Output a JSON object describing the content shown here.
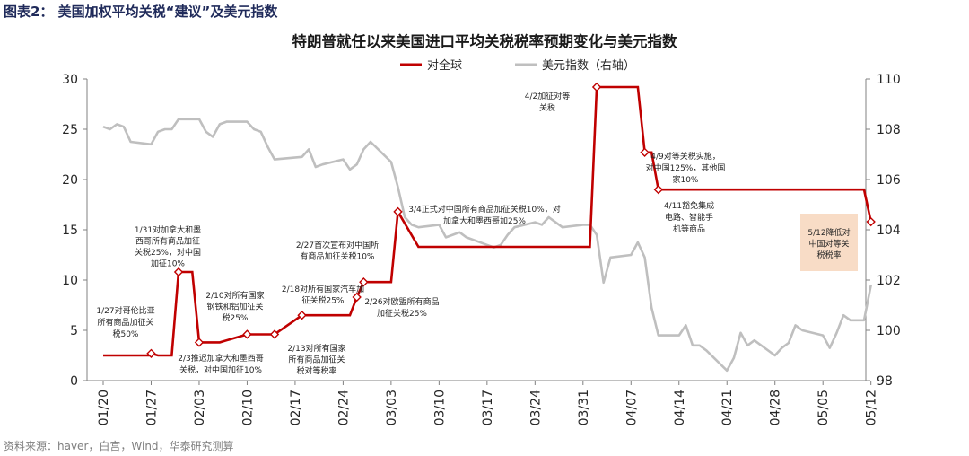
{
  "figure_label": "图表2：  美国加权平均关税“建议”及美元指数",
  "source": "资料来源：haver，白宫，Wind，华泰研究测算",
  "colors": {
    "tariff": "#c00000",
    "dxy": "#bfbfbf",
    "title": "#1a1a1a",
    "axis": "#595959",
    "box": "#f8dcc6",
    "header_rule": "#8a3b38"
  },
  "chart_data": {
    "type": "line",
    "title": "特朗普就任以来美国进口平均关税税率预期变化与美元指数",
    "legend": [
      "对全球",
      "美元指数（右轴）"
    ],
    "legend_position": "top-center",
    "grid": false,
    "x_tick_labels": [
      "01/20",
      "01/27",
      "02/03",
      "02/10",
      "02/17",
      "02/24",
      "03/03",
      "03/10",
      "03/17",
      "03/24",
      "03/31",
      "04/07",
      "04/14",
      "04/21",
      "04/28",
      "05/05",
      "05/12"
    ],
    "y_left": {
      "min": 0,
      "max": 30,
      "ticks": [
        "0",
        "5",
        "10",
        "15",
        "20",
        "25",
        "30"
      ]
    },
    "y_right": {
      "min": 98,
      "max": 110,
      "ticks": [
        "98",
        "100",
        "102",
        "104",
        "106",
        "108",
        "110"
      ]
    },
    "series": [
      {
        "name": "对全球",
        "axis": "left",
        "points": [
          [
            "01/20",
            2.5
          ],
          [
            "01/27",
            2.5
          ],
          [
            "01/27",
            2.7
          ],
          [
            "01/28",
            2.5
          ],
          [
            "01/30",
            2.5
          ],
          [
            "01/31",
            10.8
          ],
          [
            "02/02",
            10.8
          ],
          [
            "02/03",
            3.8
          ],
          [
            "02/06",
            3.8
          ],
          [
            "02/10",
            4.6
          ],
          [
            "02/14",
            4.6
          ],
          [
            "02/18",
            6.5
          ],
          [
            "02/25",
            6.5
          ],
          [
            "02/26",
            8.3
          ],
          [
            "02/27",
            9.8
          ],
          [
            "03/03",
            9.8
          ],
          [
            "03/04",
            16.8
          ],
          [
            "03/07",
            13.3
          ],
          [
            "04/01",
            13.3
          ],
          [
            "04/02",
            29.2
          ],
          [
            "04/08",
            29.2
          ],
          [
            "04/09",
            22.7
          ],
          [
            "04/10",
            22.7
          ],
          [
            "04/11",
            19.0
          ],
          [
            "05/11",
            19.0
          ],
          [
            "05/12",
            15.8
          ]
        ]
      },
      {
        "name": "美元指数（右轴）",
        "axis": "right",
        "points": [
          [
            "01/20",
            108.1
          ],
          [
            "01/21",
            108.0
          ],
          [
            "01/22",
            108.2
          ],
          [
            "01/23",
            108.1
          ],
          [
            "01/24",
            107.5
          ],
          [
            "01/27",
            107.4
          ],
          [
            "01/28",
            107.9
          ],
          [
            "01/29",
            108.0
          ],
          [
            "01/30",
            108.0
          ],
          [
            "01/31",
            108.4
          ],
          [
            "02/03",
            108.4
          ],
          [
            "02/04",
            107.9
          ],
          [
            "02/05",
            107.7
          ],
          [
            "02/06",
            108.2
          ],
          [
            "02/07",
            108.3
          ],
          [
            "02/10",
            108.3
          ],
          [
            "02/11",
            108.0
          ],
          [
            "02/12",
            107.9
          ],
          [
            "02/13",
            107.3
          ],
          [
            "02/14",
            106.8
          ],
          [
            "02/18",
            106.9
          ],
          [
            "02/19",
            107.2
          ],
          [
            "02/20",
            106.5
          ],
          [
            "02/21",
            106.6
          ],
          [
            "02/24",
            106.8
          ],
          [
            "02/25",
            106.4
          ],
          [
            "02/26",
            106.6
          ],
          [
            "02/27",
            107.2
          ],
          [
            "02/28",
            107.5
          ],
          [
            "03/03",
            106.7
          ],
          [
            "03/04",
            105.7
          ],
          [
            "03/05",
            104.5
          ],
          [
            "03/06",
            104.2
          ],
          [
            "03/07",
            104.1
          ],
          [
            "03/10",
            104.2
          ],
          [
            "03/11",
            103.7
          ],
          [
            "03/12",
            103.8
          ],
          [
            "03/13",
            103.9
          ],
          [
            "03/14",
            103.7
          ],
          [
            "03/17",
            103.4
          ],
          [
            "03/18",
            103.3
          ],
          [
            "03/19",
            103.4
          ],
          [
            "03/20",
            103.8
          ],
          [
            "03/21",
            104.1
          ],
          [
            "03/24",
            104.3
          ],
          [
            "03/25",
            104.2
          ],
          [
            "03/26",
            104.5
          ],
          [
            "03/27",
            104.3
          ],
          [
            "03/28",
            104.1
          ],
          [
            "03/31",
            104.2
          ],
          [
            "04/01",
            104.2
          ],
          [
            "04/02",
            103.8
          ],
          [
            "04/03",
            101.9
          ],
          [
            "04/04",
            102.9
          ],
          [
            "04/07",
            103.0
          ],
          [
            "04/08",
            103.5
          ],
          [
            "04/09",
            102.9
          ],
          [
            "04/10",
            100.9
          ],
          [
            "04/11",
            99.8
          ],
          [
            "04/14",
            99.8
          ],
          [
            "04/15",
            100.2
          ],
          [
            "04/16",
            99.4
          ],
          [
            "04/17",
            99.4
          ],
          [
            "04/18",
            99.2
          ],
          [
            "04/21",
            98.4
          ],
          [
            "04/22",
            98.9
          ],
          [
            "04/23",
            99.9
          ],
          [
            "04/24",
            99.4
          ],
          [
            "04/25",
            99.6
          ],
          [
            "04/28",
            99.0
          ],
          [
            "04/29",
            99.3
          ],
          [
            "04/30",
            99.5
          ],
          [
            "05/01",
            100.2
          ],
          [
            "05/02",
            100.0
          ],
          [
            "05/05",
            99.8
          ],
          [
            "05/06",
            99.3
          ],
          [
            "05/07",
            99.9
          ],
          [
            "05/08",
            100.6
          ],
          [
            "05/09",
            100.4
          ],
          [
            "05/11",
            100.4
          ],
          [
            "05/12",
            101.8
          ]
        ]
      }
    ],
    "markers": [
      {
        "date": "01/27",
        "value": 2.7
      },
      {
        "date": "01/31",
        "value": 10.8
      },
      {
        "date": "02/03",
        "value": 3.8
      },
      {
        "date": "02/10",
        "value": 4.6
      },
      {
        "date": "02/14",
        "value": 4.6
      },
      {
        "date": "02/18",
        "value": 6.5
      },
      {
        "date": "02/26",
        "value": 8.3
      },
      {
        "date": "02/27",
        "value": 9.8
      },
      {
        "date": "03/04",
        "value": 16.8
      },
      {
        "date": "04/02",
        "value": 29.2
      },
      {
        "date": "04/09",
        "value": 22.7
      },
      {
        "date": "04/11",
        "value": 19.0
      },
      {
        "date": "05/12",
        "value": 15.8
      }
    ],
    "annotations": [
      {
        "lines": [
          "1/27对哥伦比亚",
          "所有商品加征关",
          "税50%"
        ]
      },
      {
        "lines": [
          "1/31对加拿大和墨",
          "西哥所有商品加征",
          "关税25%，对中国",
          "加征10%"
        ]
      },
      {
        "lines": [
          "2/3推迟加拿大和墨西哥",
          "关税，对中国加征10%"
        ]
      },
      {
        "lines": [
          "2/10对所有国家",
          "钢铁和铝加征关",
          "税25%"
        ]
      },
      {
        "lines": [
          "2/13对所有国家",
          "所有商品加征关",
          "税对等税率"
        ]
      },
      {
        "lines": [
          "2/18对所有国家汽车加",
          "征关税25%"
        ]
      },
      {
        "lines": [
          "2/26对欧盟所有商品",
          "加征关税25%"
        ]
      },
      {
        "lines": [
          "2/27首次宣布对中国所",
          "有商品加征关税10%"
        ]
      },
      {
        "lines": [
          "3/4正式对中国所有商品加征关税10%，对",
          "加拿大和墨西哥加25%"
        ]
      },
      {
        "lines": [
          "4/2加征对等",
          "关税"
        ]
      },
      {
        "lines": [
          "4/9对等关税实施，",
          "对中国125%，其他国",
          "家10%"
        ]
      },
      {
        "lines": [
          "4/11豁免集成",
          "电路、智能手",
          "机等商品"
        ]
      },
      {
        "lines": [
          "5/12降低对",
          "中国对等关",
          "税税率"
        ]
      }
    ]
  }
}
